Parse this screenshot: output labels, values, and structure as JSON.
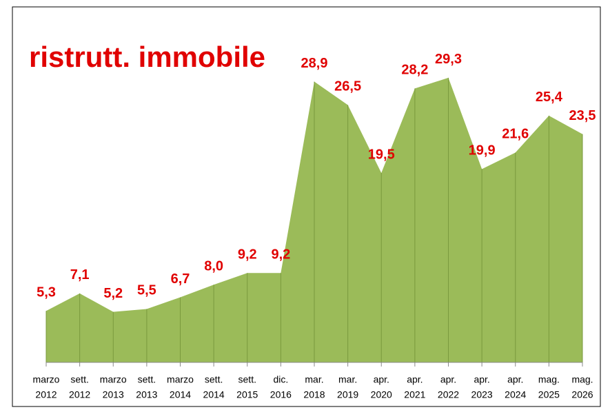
{
  "chart_data": {
    "type": "area",
    "title": "ristrutt. immobile",
    "categories": [
      [
        "marzo",
        "2012"
      ],
      [
        "sett.",
        "2012"
      ],
      [
        "marzo",
        "2013"
      ],
      [
        "sett.",
        "2013"
      ],
      [
        "marzo",
        "2014"
      ],
      [
        "sett.",
        "2014"
      ],
      [
        "sett.",
        "2015"
      ],
      [
        "dic.",
        "2016"
      ],
      [
        "mar.",
        "2018"
      ],
      [
        "mar.",
        "2019"
      ],
      [
        "apr.",
        "2020"
      ],
      [
        "apr.",
        "2021"
      ],
      [
        "apr.",
        "2022"
      ],
      [
        "apr.",
        "2023"
      ],
      [
        "apr.",
        "2024"
      ],
      [
        "mag.",
        "2025"
      ],
      [
        "mag.",
        "2026"
      ]
    ],
    "values": [
      5.3,
      7.1,
      5.2,
      5.5,
      6.7,
      8.0,
      9.2,
      9.2,
      28.9,
      26.5,
      19.5,
      28.2,
      29.3,
      19.9,
      21.6,
      25.4,
      23.5
    ],
    "value_labels": [
      "5,3",
      "7,1",
      "5,2",
      "5,5",
      "6,7",
      "8,0",
      "9,2",
      "9,2",
      "28,9",
      "26,5",
      "19,5",
      "28,2",
      "29,3",
      "19,9",
      "21,6",
      "25,4",
      "23,5"
    ],
    "color": "#9bbb59",
    "edge_color": "#7a9a3d",
    "label_color": "#e00000",
    "ylim": [
      0,
      30
    ]
  }
}
